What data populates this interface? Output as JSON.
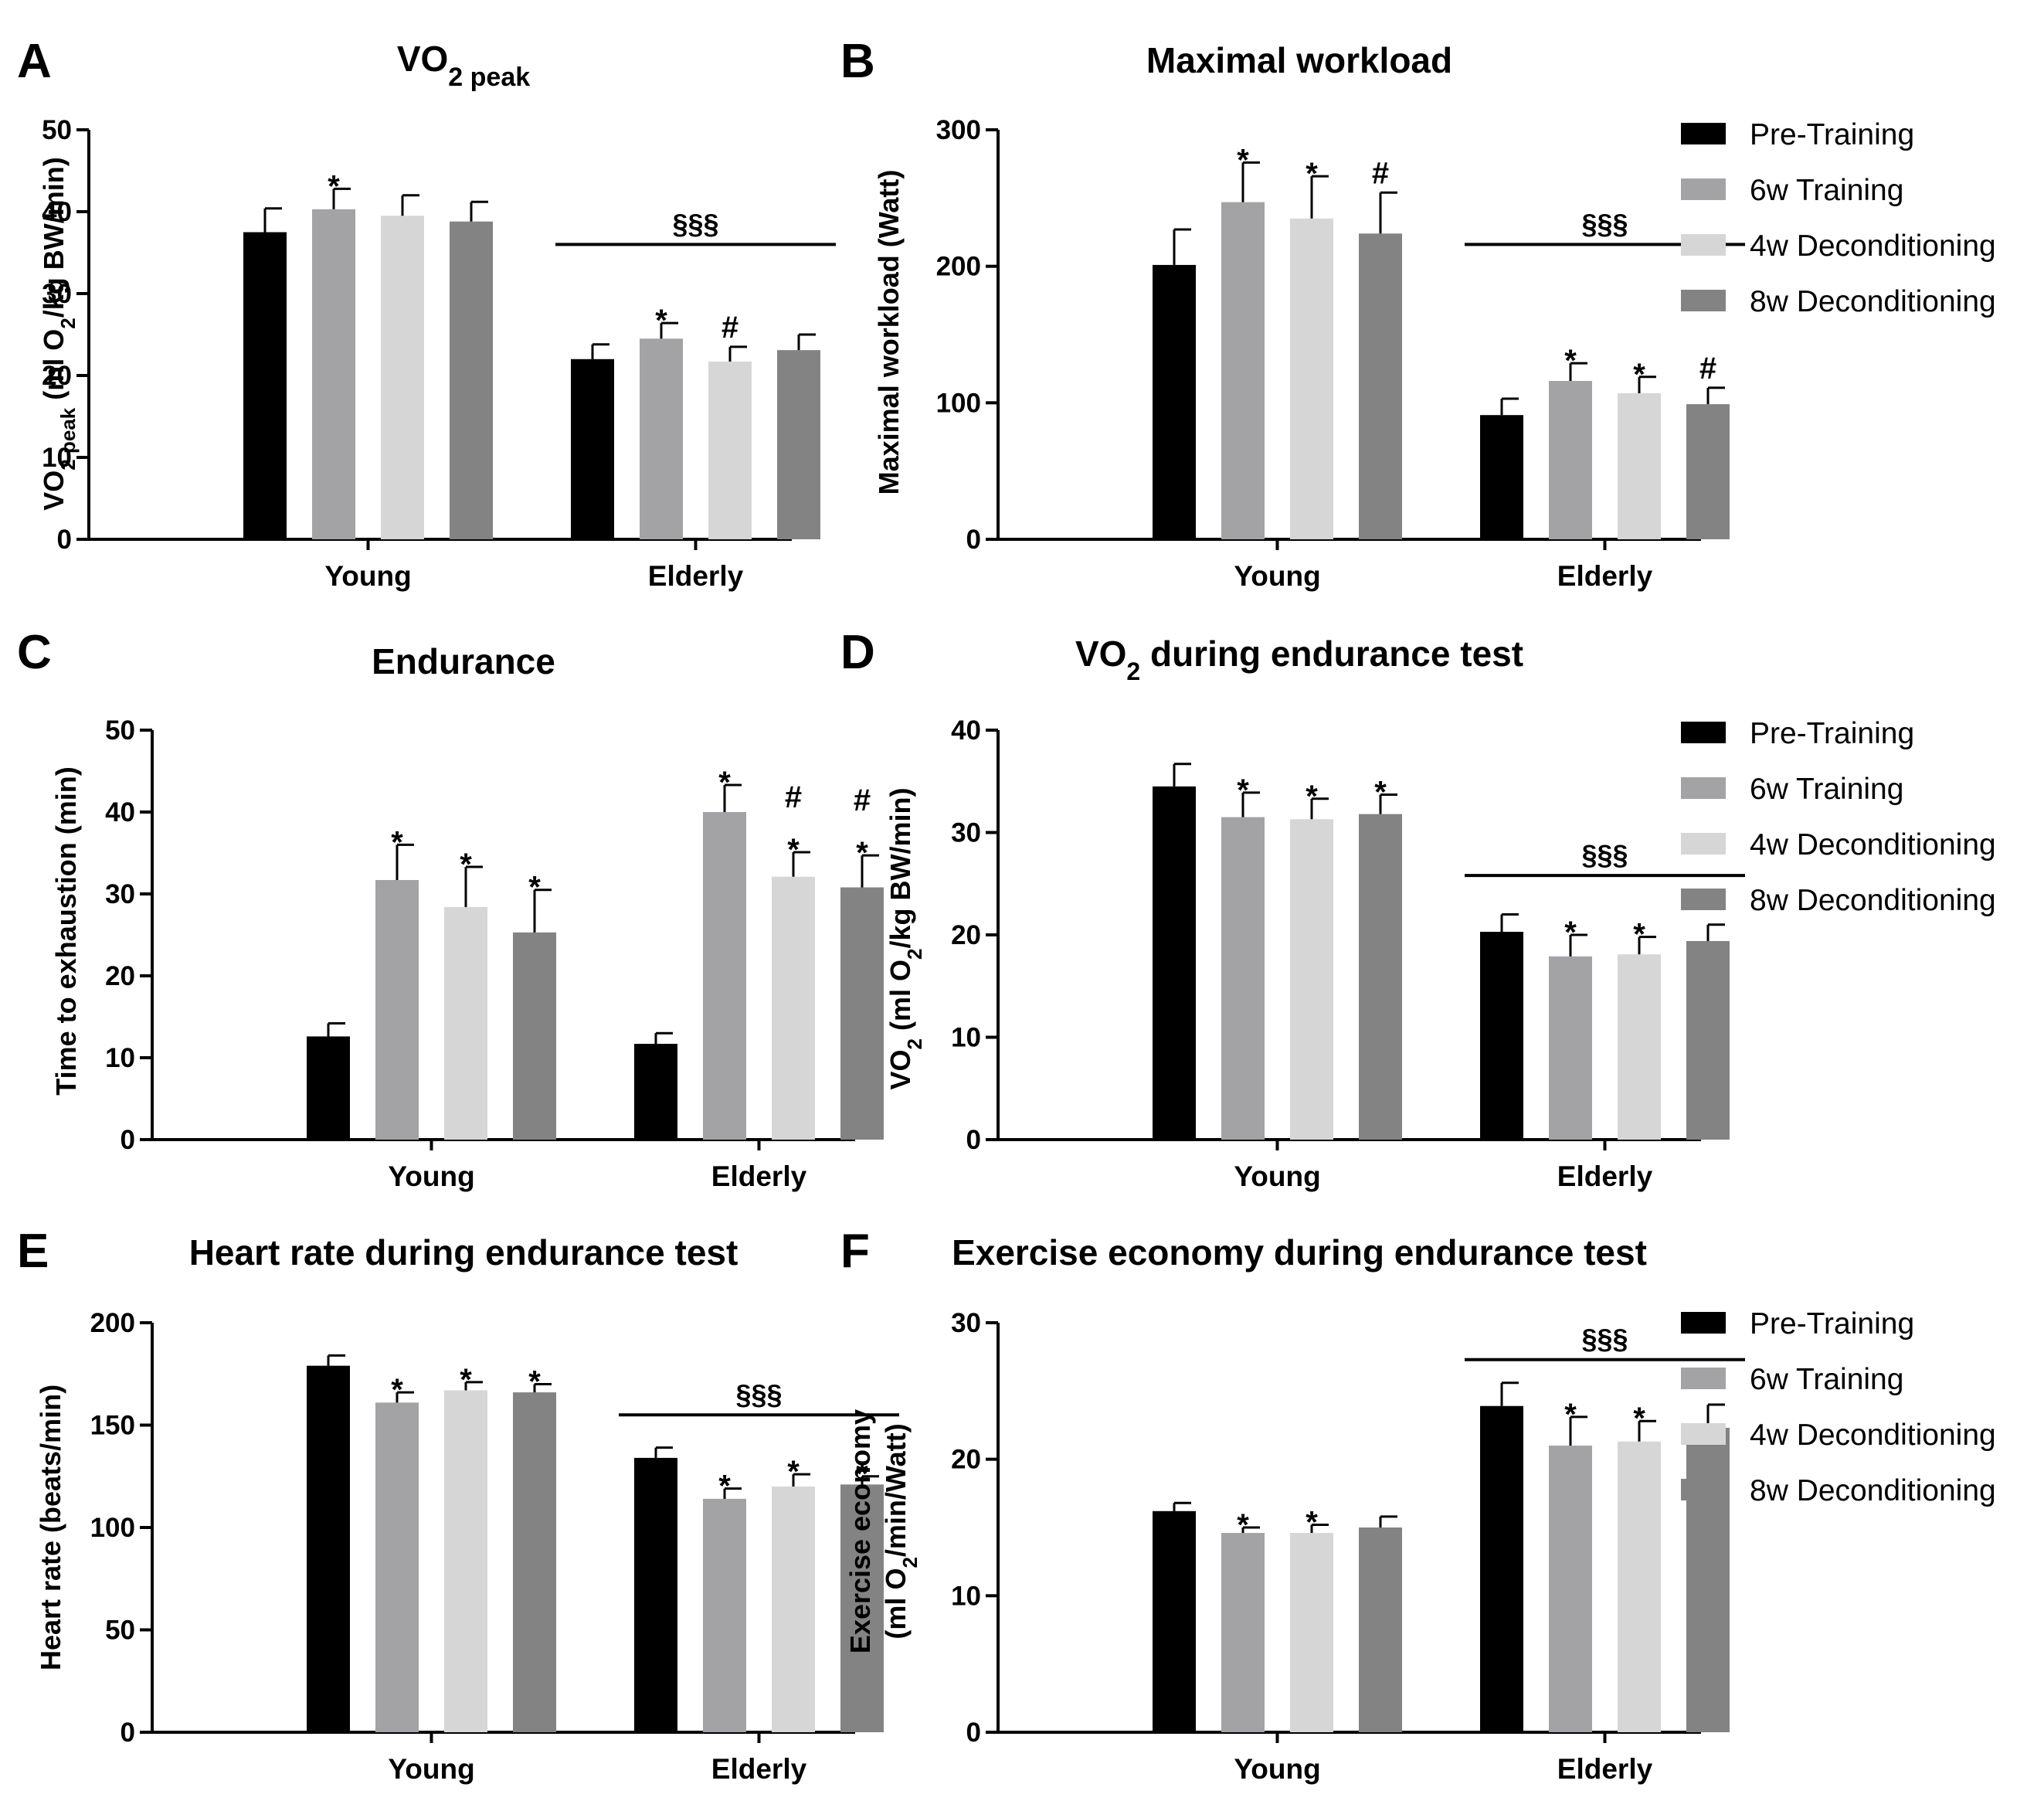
{
  "legend": [
    {
      "name": "Pre-Training",
      "color": "#000000"
    },
    {
      "name": "6w Training",
      "color": "#a3a3a5"
    },
    {
      "name": "4w Deconditioning",
      "color": "#d6d6d6"
    },
    {
      "name": "8w Deconditioning",
      "color": "#838384"
    }
  ],
  "chart_data": [
    {
      "panel": "A",
      "type": "bar",
      "title": {
        "main": "VO",
        "sub": "2 peak",
        "rest": ""
      },
      "ylabel": {
        "line1": [
          [
            "VO",
            ""
          ],
          [
            "2 peak",
            "sub"
          ],
          [
            " (ml O",
            ""
          ],
          [
            "2",
            "sub"
          ],
          [
            "/kg BW/min)",
            ""
          ]
        ]
      },
      "ylim": [
        0,
        50
      ],
      "yticks": [
        0,
        10,
        20,
        30,
        40,
        50
      ],
      "categories": [
        "Young",
        "Elderly"
      ],
      "series": [
        {
          "name": "Pre-Training",
          "values": [
            37.5,
            22.0
          ],
          "errors": [
            2.9,
            1.8
          ],
          "marks": [
            "",
            ""
          ]
        },
        {
          "name": "6w Training",
          "values": [
            40.3,
            24.5
          ],
          "errors": [
            2.5,
            1.9
          ],
          "marks": [
            "*",
            "*"
          ]
        },
        {
          "name": "4w Deconditioning",
          "values": [
            39.5,
            21.7
          ],
          "errors": [
            2.5,
            1.8
          ],
          "marks": [
            "",
            "#"
          ]
        },
        {
          "name": "8w Deconditioning",
          "values": [
            38.8,
            23.1
          ],
          "errors": [
            2.4,
            1.9
          ],
          "marks": [
            "",
            ""
          ]
        }
      ],
      "bracket": {
        "group": 1,
        "label": "§§§",
        "value": 36.0
      }
    },
    {
      "panel": "B",
      "type": "bar",
      "title": {
        "main": "Maximal workload",
        "sub": "",
        "rest": ""
      },
      "ylabel": {
        "line1": [
          [
            "Maximal workload (Watt)",
            ""
          ]
        ]
      },
      "ylim": [
        0,
        300
      ],
      "yticks": [
        0,
        100,
        200,
        300
      ],
      "categories": [
        "Young",
        "Elderly"
      ],
      "series": [
        {
          "name": "Pre-Training",
          "values": [
            201,
            91
          ],
          "errors": [
            26,
            12
          ],
          "marks": [
            "",
            ""
          ]
        },
        {
          "name": "6w Training",
          "values": [
            247,
            116
          ],
          "errors": [
            29,
            13
          ],
          "marks": [
            "*",
            "*"
          ]
        },
        {
          "name": "4w Deconditioning",
          "values": [
            235,
            107
          ],
          "errors": [
            31,
            12
          ],
          "marks": [
            "*",
            "*"
          ]
        },
        {
          "name": "8w Deconditioning",
          "values": [
            224,
            99
          ],
          "errors": [
            30,
            12
          ],
          "marks": [
            "#",
            "#"
          ]
        }
      ],
      "bracket": {
        "group": 1,
        "label": "§§§",
        "value": 216
      }
    },
    {
      "panel": "C",
      "type": "bar",
      "title": {
        "main": "Endurance",
        "sub": "",
        "rest": ""
      },
      "ylabel": {
        "line1": [
          [
            "Time to exhaustion (min)",
            ""
          ]
        ]
      },
      "ylim": [
        0,
        50
      ],
      "yticks": [
        0,
        10,
        20,
        30,
        40,
        50
      ],
      "categories": [
        "Young",
        "Elderly"
      ],
      "series": [
        {
          "name": "Pre-Training",
          "values": [
            12.6,
            11.7
          ],
          "errors": [
            1.6,
            1.3
          ],
          "marks": [
            "",
            ""
          ]
        },
        {
          "name": "6w Training",
          "values": [
            31.7,
            40.0
          ],
          "errors": [
            4.3,
            3.3
          ],
          "marks": [
            "*",
            "*"
          ]
        },
        {
          "name": "4w Deconditioning",
          "values": [
            28.4,
            32.1
          ],
          "errors": [
            4.9,
            3.0
          ],
          "marks": [
            "*",
            "#*"
          ]
        },
        {
          "name": "8w Deconditioning",
          "values": [
            25.3,
            30.8
          ],
          "errors": [
            5.2,
            3.9
          ],
          "marks": [
            "*",
            "#*"
          ]
        }
      ],
      "bracket": null
    },
    {
      "panel": "D",
      "type": "bar",
      "title": {
        "main": "VO",
        "sub": "2",
        "rest": " during endurance test"
      },
      "ylabel": {
        "line1": [
          [
            "VO",
            ""
          ],
          [
            "2",
            "sub"
          ],
          [
            " (ml O",
            ""
          ],
          [
            "2",
            "sub"
          ],
          [
            "/kg  BW/min)",
            ""
          ]
        ]
      },
      "ylim": [
        0,
        40
      ],
      "yticks": [
        0,
        10,
        20,
        30,
        40
      ],
      "categories": [
        "Young",
        "Elderly"
      ],
      "series": [
        {
          "name": "Pre-Training",
          "values": [
            34.5,
            20.3
          ],
          "errors": [
            2.2,
            1.7
          ],
          "marks": [
            "",
            ""
          ]
        },
        {
          "name": "6w Training",
          "values": [
            31.5,
            17.9
          ],
          "errors": [
            2.4,
            2.1
          ],
          "marks": [
            "*",
            "*"
          ]
        },
        {
          "name": "4w Deconditioning",
          "values": [
            31.3,
            18.1
          ],
          "errors": [
            2.0,
            1.7
          ],
          "marks": [
            "*",
            "*"
          ]
        },
        {
          "name": "8w Deconditioning",
          "values": [
            31.8,
            19.4
          ],
          "errors": [
            1.9,
            1.6
          ],
          "marks": [
            "*",
            ""
          ]
        }
      ],
      "bracket": {
        "group": 1,
        "label": "§§§",
        "value": 25.8
      }
    },
    {
      "panel": "E",
      "type": "bar",
      "title": {
        "main": "Heart rate during endurance test",
        "sub": "",
        "rest": ""
      },
      "ylabel": {
        "line1": [
          [
            "Heart rate (beats/min)",
            ""
          ]
        ]
      },
      "ylim": [
        0,
        200
      ],
      "yticks": [
        0,
        50,
        100,
        150,
        200
      ],
      "categories": [
        "Young",
        "Elderly"
      ],
      "series": [
        {
          "name": "Pre-Training",
          "values": [
            179,
            134
          ],
          "errors": [
            5,
            5
          ],
          "marks": [
            "",
            ""
          ]
        },
        {
          "name": "6w Training",
          "values": [
            161,
            114
          ],
          "errors": [
            5,
            5
          ],
          "marks": [
            "*",
            "*"
          ]
        },
        {
          "name": "4w Deconditioning",
          "values": [
            167,
            120
          ],
          "errors": [
            4,
            6
          ],
          "marks": [
            "*",
            "*"
          ]
        },
        {
          "name": "8w Deconditioning",
          "values": [
            166,
            121
          ],
          "errors": [
            4,
            4
          ],
          "marks": [
            "*",
            "*"
          ]
        }
      ],
      "bracket": {
        "group": 1,
        "label": "§§§",
        "value": 155
      }
    },
    {
      "panel": "F",
      "type": "bar",
      "title": {
        "main": "Exercise economy during endurance test",
        "sub": "",
        "rest": ""
      },
      "ylabel": {
        "line1": [
          [
            "Exercise economy",
            ""
          ]
        ],
        "line2": [
          [
            "(ml O",
            ""
          ],
          [
            "2",
            "sub"
          ],
          [
            "/min/Watt)",
            ""
          ]
        ]
      },
      "ylim": [
        0,
        30
      ],
      "yticks": [
        0,
        10,
        20,
        30
      ],
      "categories": [
        "Young",
        "Elderly"
      ],
      "series": [
        {
          "name": "Pre-Training",
          "values": [
            16.2,
            23.9
          ],
          "errors": [
            0.6,
            1.7
          ],
          "marks": [
            "",
            ""
          ]
        },
        {
          "name": "6w Training",
          "values": [
            14.6,
            21.0
          ],
          "errors": [
            0.4,
            2.1
          ],
          "marks": [
            "*",
            "*"
          ]
        },
        {
          "name": "4w Deconditioning",
          "values": [
            14.6,
            21.3
          ],
          "errors": [
            0.6,
            1.5
          ],
          "marks": [
            "*",
            "*"
          ]
        },
        {
          "name": "8w Deconditioning",
          "values": [
            15.0,
            22.3
          ],
          "errors": [
            0.8,
            1.7
          ],
          "marks": [
            "",
            ""
          ]
        }
      ],
      "bracket": {
        "group": 1,
        "label": "§§§",
        "value": 27.3
      }
    }
  ]
}
